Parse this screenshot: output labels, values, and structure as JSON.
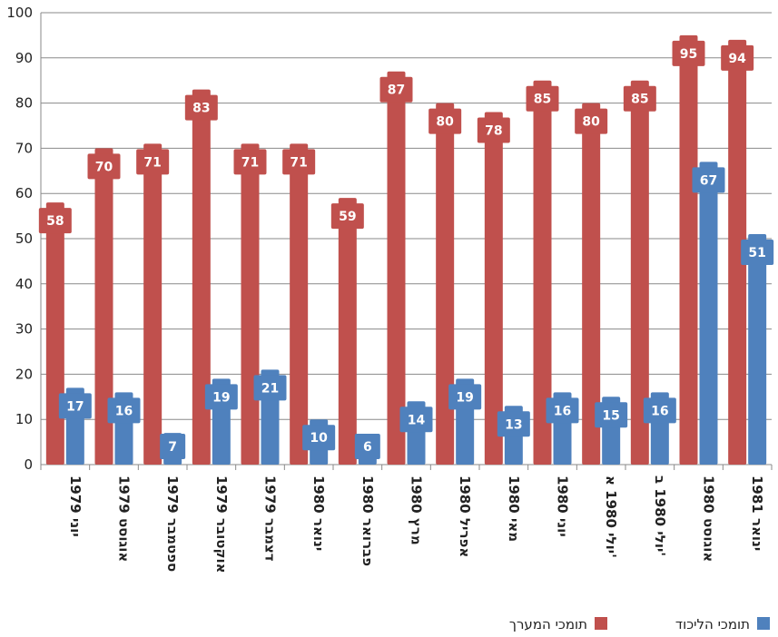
{
  "chart_data": {
    "type": "bar",
    "categories": [
      "יוני 1979",
      "אוגוסט 1979",
      "ספטמבר 1979",
      "אוקטובר 1979",
      "דצמבר 1979",
      "ינואר 1980",
      "פברואר 1980",
      "מרץ 1980",
      "אפריל 1980",
      "מאי 1980",
      "יוני 1980",
      "יולי 1980 א'",
      "יולי 1980 ב'",
      "אוגוסט 1980",
      "ינואר 1981"
    ],
    "series": [
      {
        "name": "תומכי המערך",
        "color": "#c0504d",
        "values": [
          58,
          70,
          71,
          83,
          71,
          71,
          59,
          87,
          80,
          78,
          85,
          80,
          85,
          95,
          94
        ]
      },
      {
        "name": "תומכי הליכוד",
        "color": "#4f81bd",
        "values": [
          17,
          16,
          7,
          19,
          21,
          10,
          6,
          14,
          19,
          13,
          16,
          15,
          16,
          67,
          51
        ]
      }
    ],
    "ylim": [
      0,
      100
    ],
    "yticks": [
      0,
      10,
      20,
      30,
      40,
      50,
      60,
      70,
      80,
      90,
      100
    ],
    "grid": true,
    "legend": "bottom-right"
  },
  "legend": {
    "items": [
      {
        "name": "תומכי הליכוד",
        "color": "#4f81bd"
      },
      {
        "name": "תומכי המערך",
        "color": "#c0504d"
      }
    ]
  }
}
